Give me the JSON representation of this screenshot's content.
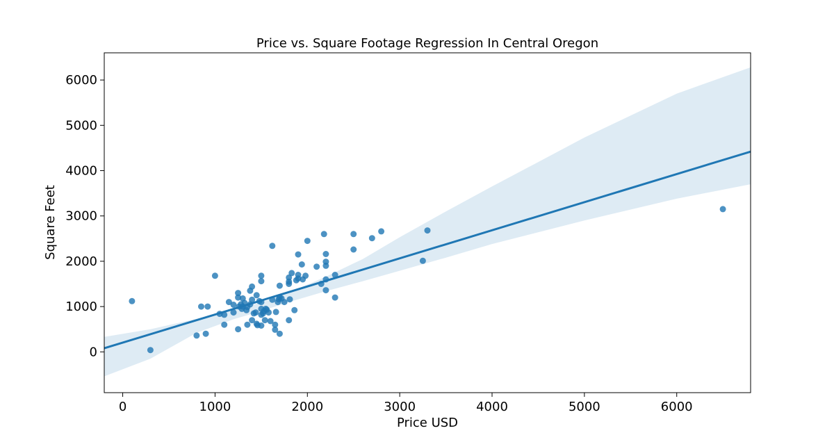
{
  "chart_data": {
    "type": "scatter",
    "title": "Price vs. Square Footage Regression In Central Oregon",
    "xlabel": "Price USD",
    "ylabel": "Square Feet",
    "xlim": [
      -200,
      6800
    ],
    "ylim": [
      -900,
      6600
    ],
    "xticks": [
      0,
      1000,
      2000,
      3000,
      4000,
      5000,
      6000
    ],
    "yticks": [
      0,
      1000,
      2000,
      3000,
      4000,
      5000,
      6000
    ],
    "grid": false,
    "legend": "none",
    "color": "#1f77b4",
    "regression": {
      "x": [
        -200,
        6800
      ],
      "y": [
        80,
        4420
      ],
      "ci_upper": [
        [
          -200,
          330
        ],
        [
          300,
          500
        ],
        [
          800,
          730
        ],
        [
          1200,
          930
        ],
        [
          1500,
          1090
        ],
        [
          1800,
          1310
        ],
        [
          2200,
          1660
        ],
        [
          2600,
          2050
        ],
        [
          3000,
          2530
        ],
        [
          3500,
          3100
        ],
        [
          4000,
          3650
        ],
        [
          5000,
          4730
        ],
        [
          6000,
          5700
        ],
        [
          6800,
          6280
        ]
      ],
      "ci_lower": [
        [
          -200,
          -540
        ],
        [
          300,
          -150
        ],
        [
          800,
          420
        ],
        [
          1200,
          720
        ],
        [
          1500,
          900
        ],
        [
          1800,
          1100
        ],
        [
          2200,
          1340
        ],
        [
          2600,
          1560
        ],
        [
          3000,
          1790
        ],
        [
          3500,
          2080
        ],
        [
          4000,
          2380
        ],
        [
          5000,
          2900
        ],
        [
          6000,
          3380
        ],
        [
          6800,
          3700
        ]
      ]
    },
    "points": [
      [
        100,
        1120
      ],
      [
        300,
        40
      ],
      [
        800,
        360
      ],
      [
        850,
        1000
      ],
      [
        900,
        400
      ],
      [
        920,
        1000
      ],
      [
        1000,
        1680
      ],
      [
        1050,
        840
      ],
      [
        1100,
        820
      ],
      [
        1100,
        600
      ],
      [
        1150,
        1100
      ],
      [
        1200,
        870
      ],
      [
        1200,
        1040
      ],
      [
        1250,
        1200
      ],
      [
        1250,
        1300
      ],
      [
        1250,
        500
      ],
      [
        1260,
        1000
      ],
      [
        1280,
        1050
      ],
      [
        1290,
        950
      ],
      [
        1300,
        1180
      ],
      [
        1300,
        1000
      ],
      [
        1320,
        1080
      ],
      [
        1340,
        920
      ],
      [
        1350,
        990
      ],
      [
        1350,
        600
      ],
      [
        1380,
        1050
      ],
      [
        1380,
        1350
      ],
      [
        1400,
        1440
      ],
      [
        1400,
        1150
      ],
      [
        1400,
        700
      ],
      [
        1420,
        850
      ],
      [
        1440,
        870
      ],
      [
        1450,
        1250
      ],
      [
        1450,
        620
      ],
      [
        1460,
        590
      ],
      [
        1480,
        1120
      ],
      [
        1500,
        1680
      ],
      [
        1500,
        1560
      ],
      [
        1500,
        1100
      ],
      [
        1500,
        950
      ],
      [
        1500,
        820
      ],
      [
        1500,
        580
      ],
      [
        1520,
        850
      ],
      [
        1530,
        900
      ],
      [
        1540,
        700
      ],
      [
        1550,
        950
      ],
      [
        1560,
        930
      ],
      [
        1580,
        870
      ],
      [
        1600,
        680
      ],
      [
        1620,
        2340
      ],
      [
        1620,
        1150
      ],
      [
        1650,
        600
      ],
      [
        1650,
        490
      ],
      [
        1660,
        880
      ],
      [
        1680,
        1100
      ],
      [
        1690,
        1160
      ],
      [
        1700,
        1460
      ],
      [
        1700,
        1200
      ],
      [
        1700,
        400
      ],
      [
        1720,
        1180
      ],
      [
        1750,
        1100
      ],
      [
        1800,
        1640
      ],
      [
        1800,
        1550
      ],
      [
        1800,
        1500
      ],
      [
        1800,
        700
      ],
      [
        1810,
        1160
      ],
      [
        1830,
        1740
      ],
      [
        1860,
        920
      ],
      [
        1880,
        1580
      ],
      [
        1900,
        2150
      ],
      [
        1900,
        1700
      ],
      [
        1900,
        1620
      ],
      [
        1940,
        1930
      ],
      [
        1950,
        1600
      ],
      [
        1980,
        1680
      ],
      [
        2000,
        2450
      ],
      [
        2100,
        1880
      ],
      [
        2150,
        1500
      ],
      [
        2180,
        2600
      ],
      [
        2200,
        2160
      ],
      [
        2200,
        1990
      ],
      [
        2200,
        1900
      ],
      [
        2200,
        1600
      ],
      [
        2200,
        1360
      ],
      [
        2300,
        1700
      ],
      [
        2300,
        1200
      ],
      [
        2500,
        2600
      ],
      [
        2500,
        2260
      ],
      [
        2700,
        2510
      ],
      [
        2800,
        2660
      ],
      [
        3250,
        2010
      ],
      [
        3300,
        2680
      ],
      [
        6500,
        3150
      ]
    ]
  }
}
